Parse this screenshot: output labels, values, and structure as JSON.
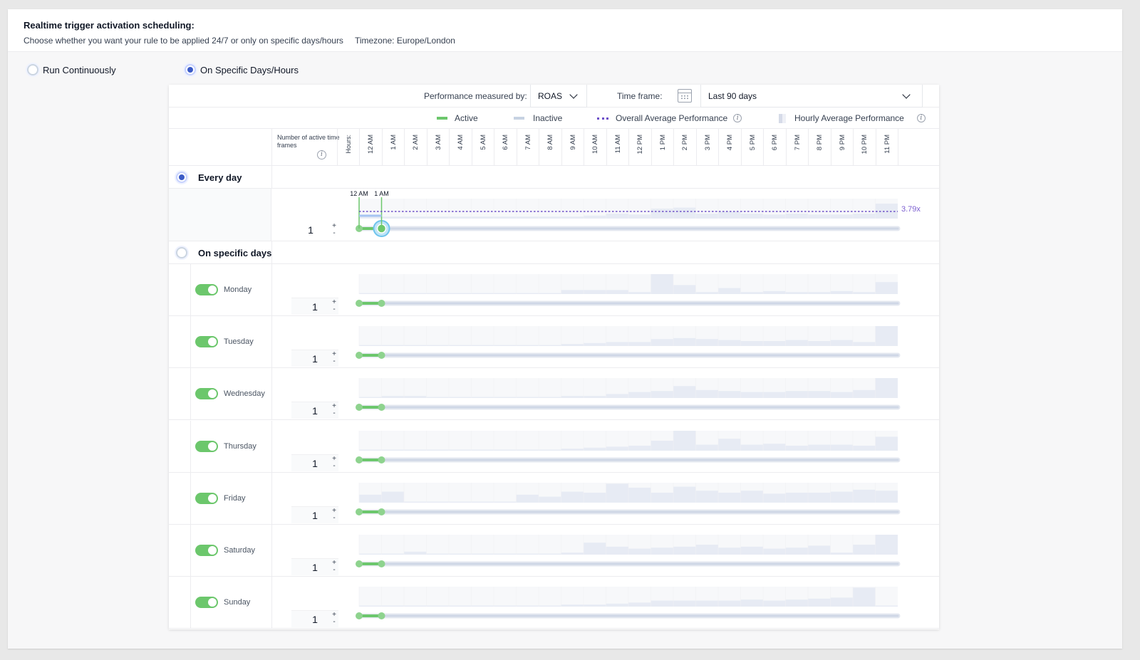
{
  "header": {
    "title": "Realtime trigger activation scheduling:",
    "subtitle": "Choose whether you want your rule to be applied 24/7 or only on specific days/hours",
    "timezone": "Timezone: Europe/London"
  },
  "mode_options": [
    {
      "label": "Run Continuously",
      "selected": false
    },
    {
      "label": "On Specific Days/Hours",
      "selected": true
    }
  ],
  "toolbar": {
    "performance_label": "Performance measured by:",
    "performance_value": "ROAS",
    "timeframe_label": "Time frame:",
    "timeframe_value": "Last 90 days"
  },
  "legend": {
    "active": "Active",
    "inactive": "Inactive",
    "overall_avg": "Overall Average Performance",
    "hourly_avg": "Hourly Average Performance"
  },
  "grid_header": {
    "count_label": "Number of active time frames",
    "hours_label": "Hours:",
    "hours": [
      "12 AM",
      "1 AM",
      "2 AM",
      "3 AM",
      "4 AM",
      "5 AM",
      "6 AM",
      "7 AM",
      "8 AM",
      "9 AM",
      "10 AM",
      "11 AM",
      "12 PM",
      "1 PM",
      "2 PM",
      "3 PM",
      "4 PM",
      "5 PM",
      "6 PM",
      "7 PM",
      "8 PM",
      "9 PM",
      "10 PM",
      "11 PM"
    ]
  },
  "every_day": {
    "title": "Every day",
    "selected": true,
    "count": "1",
    "range_start_label": "12 AM",
    "range_end_label": "1 AM",
    "range_start_hour": 0,
    "range_end_hour": 1,
    "overall_avg_label": "3.79x",
    "hourly_levels": [
      0.15,
      0.1,
      0.1,
      0.1,
      0.1,
      0.1,
      0.1,
      0.1,
      0.1,
      0.1,
      0.15,
      0.25,
      0.2,
      0.5,
      0.55,
      0.25,
      0.35,
      0.25,
      0.2,
      0.25,
      0.2,
      0.2,
      0.25,
      0.75
    ]
  },
  "specific_days": {
    "title": "On specific days",
    "selected": false,
    "days": [
      {
        "label": "Monday",
        "enabled": true,
        "count": "1",
        "start_hour": 0,
        "end_hour": 1,
        "levels": [
          0.05,
          0.05,
          0.05,
          0.05,
          0.05,
          0.05,
          0.05,
          0.05,
          0.05,
          0.2,
          0.2,
          0.2,
          0.1,
          1.0,
          0.45,
          0.1,
          0.3,
          0.1,
          0.15,
          0.1,
          0.1,
          0.15,
          0.1,
          0.6
        ]
      },
      {
        "label": "Tuesday",
        "enabled": true,
        "count": "1",
        "start_hour": 0,
        "end_hour": 1,
        "levels": [
          0.05,
          0.05,
          0.05,
          0.05,
          0.05,
          0.05,
          0.05,
          0.05,
          0.05,
          0.1,
          0.15,
          0.2,
          0.2,
          0.35,
          0.4,
          0.35,
          0.3,
          0.25,
          0.25,
          0.3,
          0.25,
          0.3,
          0.2,
          1.0
        ]
      },
      {
        "label": "Wednesday",
        "enabled": true,
        "count": "1",
        "start_hour": 0,
        "end_hour": 1,
        "levels": [
          0.05,
          0.1,
          0.1,
          0.05,
          0.05,
          0.05,
          0.05,
          0.05,
          0.05,
          0.1,
          0.1,
          0.2,
          0.3,
          0.35,
          0.6,
          0.4,
          0.35,
          0.3,
          0.3,
          0.35,
          0.35,
          0.3,
          0.4,
          1.0
        ]
      },
      {
        "label": "Thursday",
        "enabled": true,
        "count": "1",
        "start_hour": 0,
        "end_hour": 1,
        "levels": [
          0.05,
          0.05,
          0.05,
          0.05,
          0.05,
          0.05,
          0.05,
          0.05,
          0.05,
          0.1,
          0.15,
          0.2,
          0.25,
          0.5,
          1.0,
          0.3,
          0.6,
          0.3,
          0.35,
          0.25,
          0.3,
          0.3,
          0.25,
          0.7
        ]
      },
      {
        "label": "Friday",
        "enabled": true,
        "count": "1",
        "start_hour": 0,
        "end_hour": 1,
        "levels": [
          0.4,
          0.55,
          0.05,
          0.05,
          0.05,
          0.05,
          0.05,
          0.4,
          0.3,
          0.55,
          0.5,
          0.95,
          0.75,
          0.5,
          0.8,
          0.6,
          0.5,
          0.6,
          0.45,
          0.5,
          0.5,
          0.55,
          0.65,
          0.6
        ]
      },
      {
        "label": "Saturday",
        "enabled": true,
        "count": "1",
        "start_hour": 0,
        "end_hour": 1,
        "levels": [
          0.05,
          0.05,
          0.15,
          0.05,
          0.05,
          0.05,
          0.05,
          0.05,
          0.05,
          0.1,
          0.6,
          0.4,
          0.3,
          0.35,
          0.4,
          0.5,
          0.35,
          0.4,
          0.3,
          0.35,
          0.45,
          0.1,
          0.5,
          1.0
        ]
      },
      {
        "label": "Sunday",
        "enabled": true,
        "count": "1",
        "start_hour": 0,
        "end_hour": 1,
        "levels": [
          0.05,
          0.05,
          0.05,
          0.05,
          0.05,
          0.05,
          0.05,
          0.05,
          0.05,
          0.1,
          0.1,
          0.15,
          0.2,
          0.3,
          0.3,
          0.3,
          0.3,
          0.35,
          0.3,
          0.35,
          0.4,
          0.45,
          0.95,
          0.05
        ]
      }
    ]
  },
  "colors": {
    "active": "#6cc76c",
    "inactive": "#cfd7e6",
    "overall_avg": "#6d4fc8",
    "hourly_bar": "#e7ebf4",
    "radio_selected": "#3b5bc7"
  }
}
